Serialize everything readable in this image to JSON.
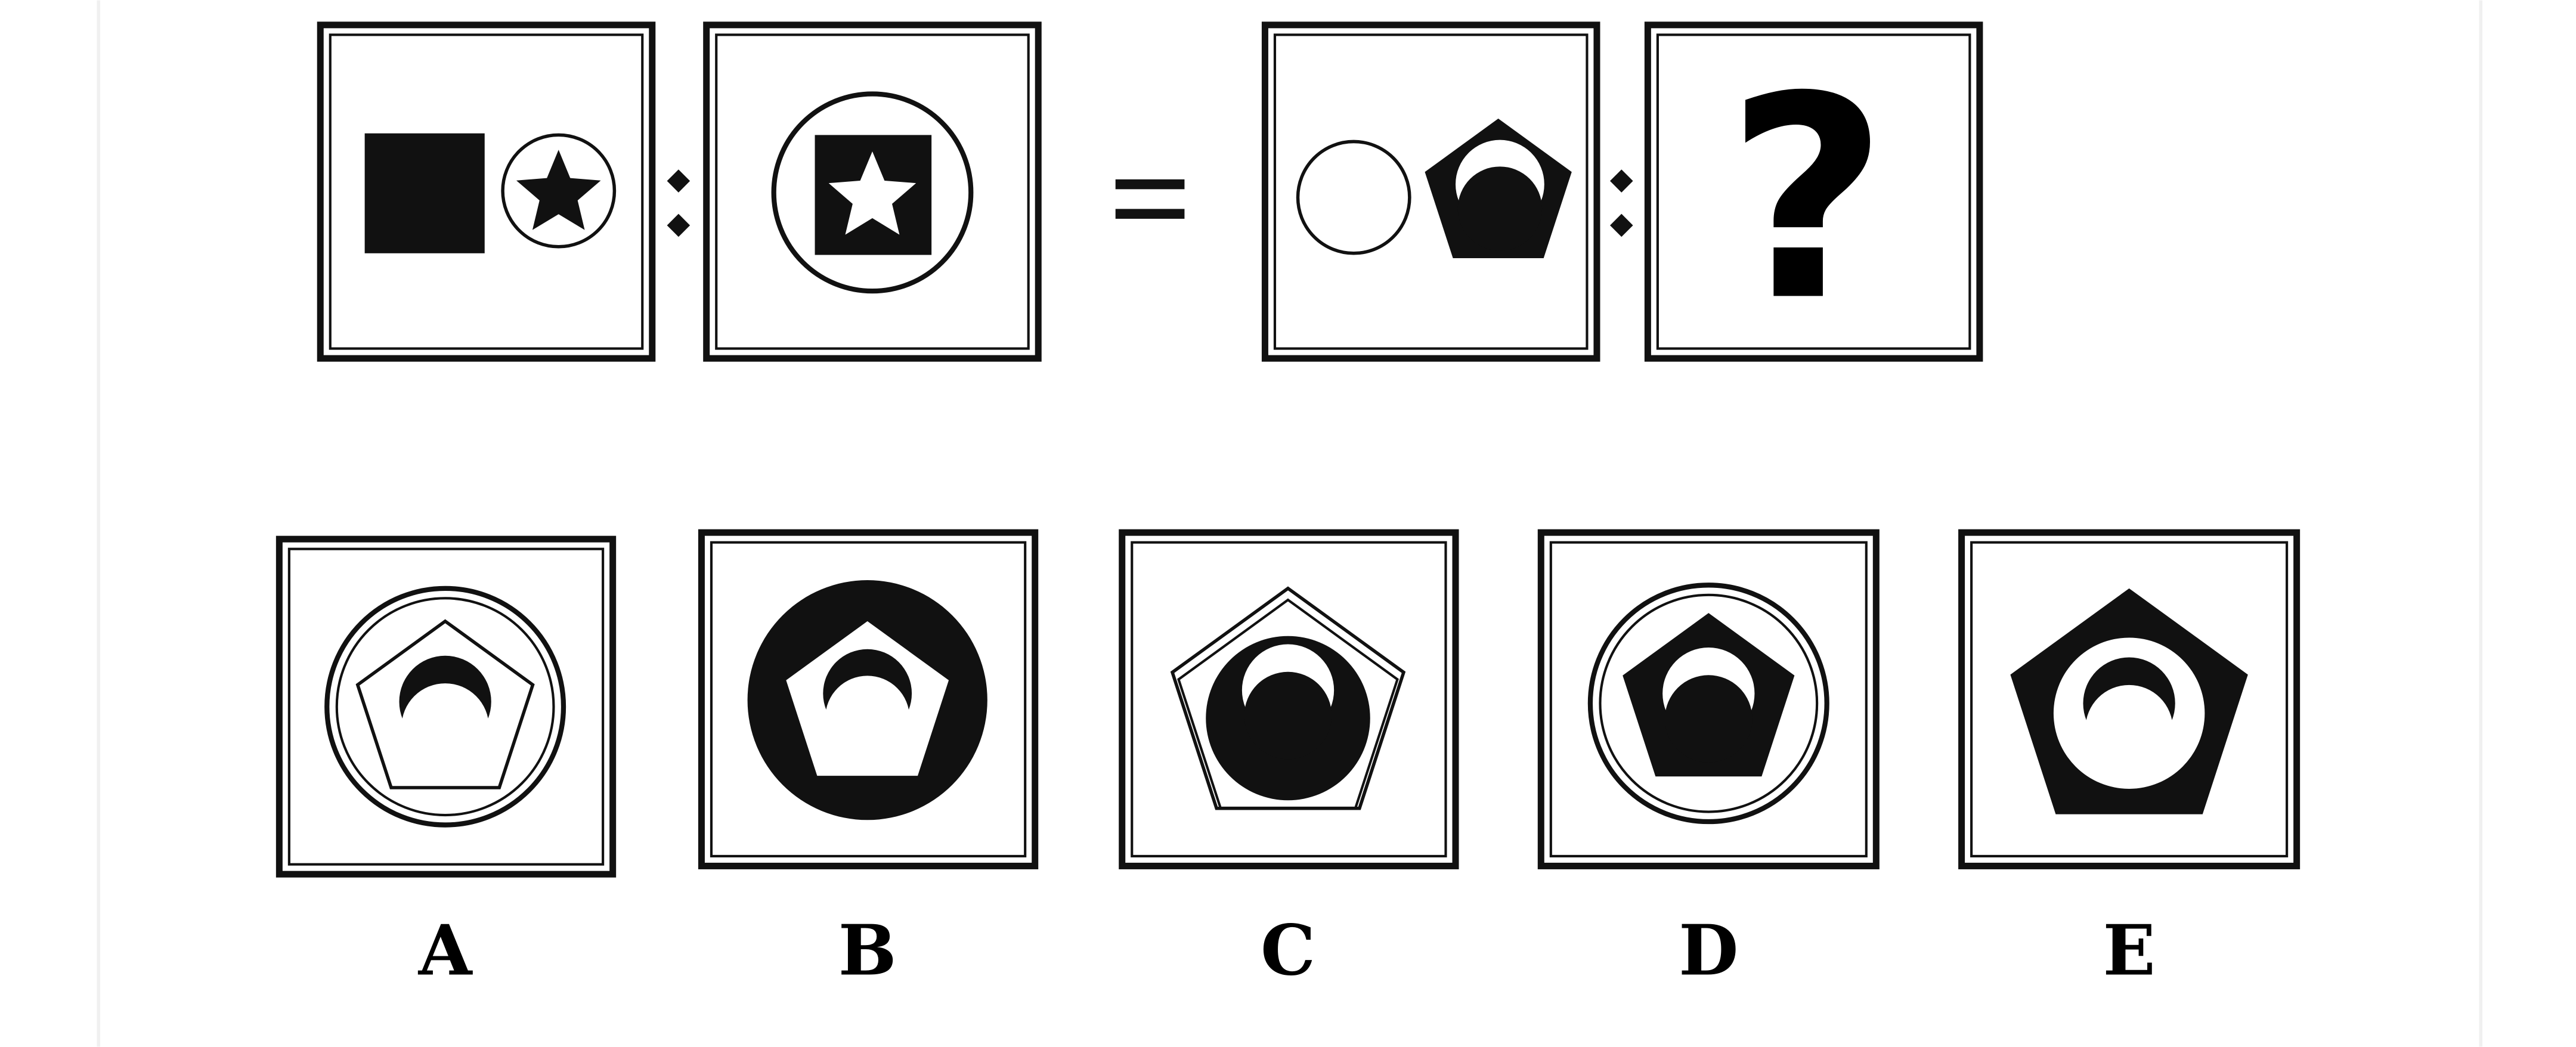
{
  "question": "?",
  "options": [
    "A",
    "B",
    "C",
    "D",
    "E"
  ]
}
